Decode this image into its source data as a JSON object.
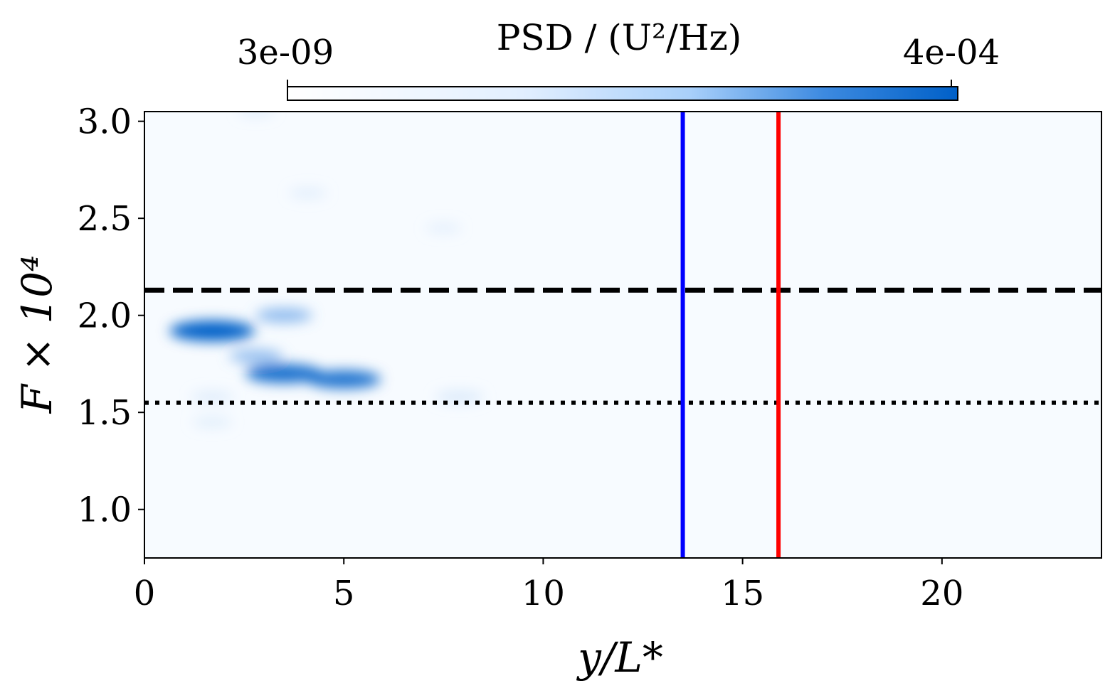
{
  "chart_data": {
    "type": "heatmap",
    "title": "",
    "xlabel": "y/L*",
    "ylabel": "F × 10⁴",
    "xlim": [
      0,
      24
    ],
    "ylim": [
      0.75,
      3.05
    ],
    "xticks": [
      0,
      5,
      10,
      15,
      20
    ],
    "xtick_labels": [
      "0",
      "5",
      "10",
      "15",
      "20"
    ],
    "yticks": [
      1.0,
      1.5,
      2.0,
      2.5,
      3.0
    ],
    "ytick_labels": [
      "1.0",
      "1.5",
      "2.0",
      "2.5",
      "3.0"
    ],
    "colorbar": {
      "title": "PSD / (U²/Hz)",
      "min_label": "3e-09",
      "max_label": "4e-04",
      "min_color": "#ffffff",
      "max_color": "#0060c8",
      "position": "top"
    },
    "vertical_lines": [
      {
        "x": 13.5,
        "color": "#0000ff",
        "style": "solid"
      },
      {
        "x": 15.9,
        "color": "#ff0000",
        "style": "solid"
      }
    ],
    "horizontal_lines": [
      {
        "y": 2.13,
        "color": "#000000",
        "style": "dashed"
      },
      {
        "y": 1.55,
        "color": "#000000",
        "style": "dotted"
      }
    ],
    "hotspots": [
      {
        "x": 1.7,
        "y": 1.92,
        "intensity": 0.95
      },
      {
        "x": 3.5,
        "y": 1.7,
        "intensity": 0.8
      },
      {
        "x": 5.0,
        "y": 1.67,
        "intensity": 0.75
      },
      {
        "x": 3.5,
        "y": 2.0,
        "intensity": 0.45
      },
      {
        "x": 2.8,
        "y": 1.79,
        "intensity": 0.4
      },
      {
        "x": 7.9,
        "y": 1.58,
        "intensity": 0.3
      },
      {
        "x": 1.7,
        "y": 1.58,
        "intensity": 0.2
      },
      {
        "x": 1.7,
        "y": 1.45,
        "intensity": 0.15
      },
      {
        "x": 4.1,
        "y": 2.63,
        "intensity": 0.12
      },
      {
        "x": 7.5,
        "y": 2.45,
        "intensity": 0.08
      },
      {
        "x": 2.8,
        "y": 3.05,
        "intensity": 0.1
      }
    ]
  }
}
